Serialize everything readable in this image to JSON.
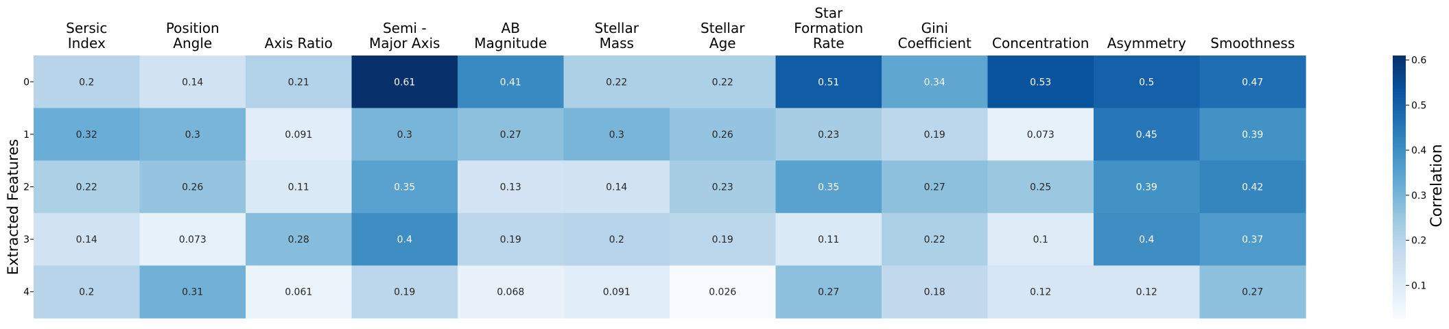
{
  "chart_data": {
    "type": "heatmap",
    "columns": [
      [
        "Sersic",
        "Index"
      ],
      [
        "Position",
        "Angle"
      ],
      [
        "Axis Ratio"
      ],
      [
        "Semi -",
        "Major Axis"
      ],
      [
        "AB",
        "Magnitude"
      ],
      [
        "Stellar",
        "Mass"
      ],
      [
        "Stellar",
        "Age"
      ],
      [
        "Star",
        "Formation",
        "Rate"
      ],
      [
        "Gini",
        "Coefficient"
      ],
      [
        "Concentration"
      ],
      [
        "Asymmetry"
      ],
      [
        "Smoothness"
      ]
    ],
    "rows": [
      "0",
      "1",
      "2",
      "3",
      "4"
    ],
    "values": [
      [
        0.2,
        0.14,
        0.21,
        0.61,
        0.41,
        0.22,
        0.22,
        0.51,
        0.34,
        0.53,
        0.5,
        0.47
      ],
      [
        0.32,
        0.3,
        0.091,
        0.3,
        0.27,
        0.3,
        0.26,
        0.23,
        0.19,
        0.073,
        0.45,
        0.39
      ],
      [
        0.22,
        0.26,
        0.11,
        0.35,
        0.13,
        0.14,
        0.23,
        0.35,
        0.27,
        0.25,
        0.39,
        0.42
      ],
      [
        0.14,
        0.073,
        0.28,
        0.4,
        0.19,
        0.2,
        0.19,
        0.11,
        0.22,
        0.1,
        0.4,
        0.37
      ],
      [
        0.2,
        0.31,
        0.061,
        0.19,
        0.068,
        0.091,
        0.026,
        0.27,
        0.18,
        0.12,
        0.12,
        0.27
      ]
    ],
    "ylabel": "Extracted Features",
    "colorbar": {
      "label": "Correlation",
      "ticks": [
        "0.1",
        "0.2",
        "0.3",
        "0.4",
        "0.5",
        "0.6"
      ],
      "range": [
        0.026,
        0.61
      ]
    },
    "colormap": "Blues",
    "colormap_stops": [
      "#f7fbff",
      "#deebf7",
      "#c6dbef",
      "#9ecae1",
      "#6baed6",
      "#4292c6",
      "#2171b5",
      "#08519c",
      "#08306b"
    ]
  }
}
